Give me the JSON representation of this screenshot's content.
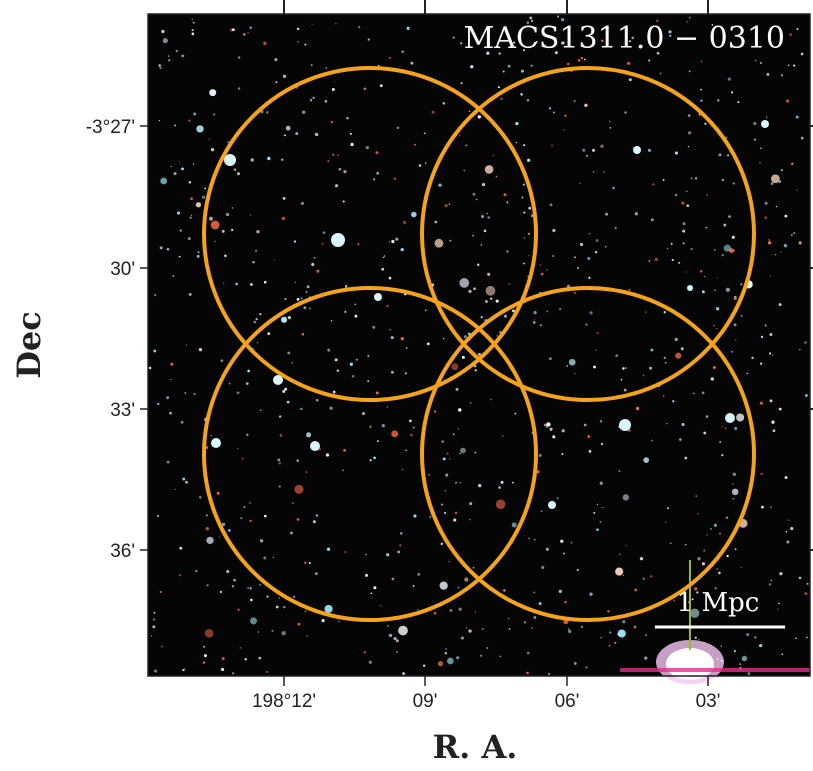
{
  "image_title": "MACS1311.0 − 0310",
  "x_axis": {
    "label": "R. A.",
    "ticks": [
      "198°12'",
      "09'",
      "06'",
      "03'"
    ]
  },
  "y_axis": {
    "label": "Dec",
    "ticks": [
      "-3°27'",
      "30'",
      "33'",
      "36'"
    ]
  },
  "scale_bar": "1 Mpc"
}
